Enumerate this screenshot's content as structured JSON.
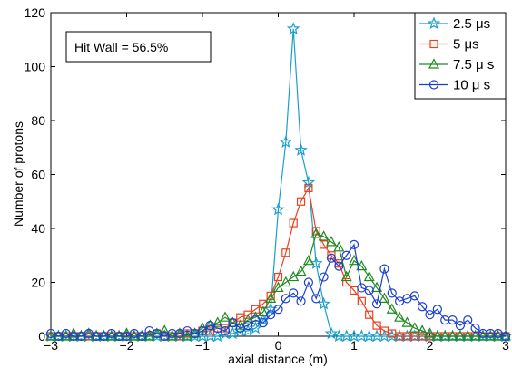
{
  "chart_data": {
    "type": "line",
    "xlabel": "axial distance (m)",
    "ylabel": "Number of protons",
    "xlim": [
      -3,
      3
    ],
    "ylim": [
      0,
      120
    ],
    "xticks": [
      -3,
      -2,
      -1,
      0,
      1,
      2,
      3
    ],
    "yticks": [
      0,
      20,
      40,
      60,
      80,
      100,
      120
    ],
    "grid": false,
    "legend_position": "top-right",
    "annotation": "Hit Wall = 56.5%",
    "series": [
      {
        "name": "2.5 μs",
        "color": "#1a9fcc",
        "marker": "star",
        "x": [
          -3.0,
          -2.9,
          -2.8,
          -2.7,
          -2.6,
          -2.5,
          -2.4,
          -2.3,
          -2.2,
          -2.1,
          -2.0,
          -1.9,
          -1.8,
          -1.7,
          -1.6,
          -1.5,
          -1.4,
          -1.3,
          -1.2,
          -1.1,
          -1.0,
          -0.9,
          -0.8,
          -0.7,
          -0.6,
          -0.5,
          -0.4,
          -0.3,
          -0.2,
          -0.1,
          0.0,
          0.1,
          0.2,
          0.3,
          0.4,
          0.5,
          0.6,
          0.7,
          0.8,
          0.9,
          1.0,
          1.1,
          1.2,
          1.3,
          1.4,
          1.5,
          1.6,
          1.7,
          1.8,
          1.9,
          2.0,
          2.1,
          2.2,
          2.3,
          2.4,
          2.5,
          2.6,
          2.7,
          2.8,
          2.9,
          3.0
        ],
        "y": [
          0,
          0,
          0,
          0,
          0,
          0,
          0,
          0,
          0,
          0,
          0,
          0,
          0,
          0,
          0,
          0,
          0,
          0,
          0,
          0,
          0,
          0,
          0,
          1,
          1,
          2,
          2,
          3,
          6,
          10,
          47,
          72,
          114,
          69,
          57,
          27,
          12,
          1,
          0,
          0,
          0,
          0,
          0,
          0,
          0,
          0,
          0,
          0,
          0,
          0,
          0,
          0,
          0,
          0,
          0,
          0,
          0,
          0,
          0,
          0,
          0
        ]
      },
      {
        "name": "5 μs",
        "color": "#e84020",
        "marker": "square",
        "x": [
          -3.0,
          -2.9,
          -2.8,
          -2.7,
          -2.6,
          -2.5,
          -2.4,
          -2.3,
          -2.2,
          -2.1,
          -2.0,
          -1.9,
          -1.8,
          -1.7,
          -1.6,
          -1.5,
          -1.4,
          -1.3,
          -1.2,
          -1.1,
          -1.0,
          -0.9,
          -0.8,
          -0.7,
          -0.6,
          -0.5,
          -0.4,
          -0.3,
          -0.2,
          -0.1,
          0.0,
          0.1,
          0.2,
          0.3,
          0.4,
          0.5,
          0.6,
          0.7,
          0.8,
          0.9,
          1.0,
          1.1,
          1.2,
          1.3,
          1.4,
          1.5,
          1.6,
          1.7,
          1.8,
          1.9,
          2.0,
          2.1,
          2.2,
          2.3,
          2.4,
          2.5,
          2.6,
          2.7,
          2.8,
          2.9,
          3.0
        ],
        "y": [
          0,
          0,
          0,
          0,
          0,
          0,
          0,
          0,
          0,
          0,
          0,
          0,
          0,
          0,
          1,
          0,
          0,
          0,
          1,
          1,
          2,
          2,
          3,
          3,
          5,
          7,
          8,
          10,
          12,
          15,
          22,
          31,
          42,
          50,
          55,
          39,
          34,
          30,
          27,
          20,
          17,
          13,
          8,
          4,
          2,
          1,
          0,
          0,
          0,
          0,
          0,
          0,
          0,
          0,
          0,
          0,
          0,
          0,
          0,
          0,
          0
        ]
      },
      {
        "name": "7.5 μ s",
        "color": "#1f8a1f",
        "marker": "triangle",
        "x": [
          -3.0,
          -2.9,
          -2.8,
          -2.7,
          -2.6,
          -2.5,
          -2.4,
          -2.3,
          -2.2,
          -2.1,
          -2.0,
          -1.9,
          -1.8,
          -1.7,
          -1.6,
          -1.5,
          -1.4,
          -1.3,
          -1.2,
          -1.1,
          -1.0,
          -0.9,
          -0.8,
          -0.7,
          -0.6,
          -0.5,
          -0.4,
          -0.3,
          -0.2,
          -0.1,
          0.0,
          0.1,
          0.2,
          0.3,
          0.4,
          0.5,
          0.6,
          0.7,
          0.8,
          0.9,
          1.0,
          1.1,
          1.2,
          1.3,
          1.4,
          1.5,
          1.6,
          1.7,
          1.8,
          1.9,
          2.0,
          2.1,
          2.2,
          2.3,
          2.4,
          2.5,
          2.6,
          2.7,
          2.8,
          2.9,
          3.0
        ],
        "y": [
          0,
          0,
          0,
          1,
          0,
          1,
          0,
          0,
          0,
          0,
          1,
          0,
          0,
          0,
          1,
          2,
          0,
          1,
          0,
          1,
          3,
          4,
          5,
          7,
          5,
          4,
          6,
          7,
          9,
          14,
          18,
          20,
          22,
          24,
          28,
          38,
          37,
          35,
          33,
          22,
          28,
          26,
          22,
          18,
          14,
          10,
          7,
          5,
          3,
          2,
          1,
          0,
          0,
          0,
          0,
          0,
          0,
          0,
          0,
          0,
          0
        ]
      },
      {
        "name": "10 μ s",
        "color": "#1c3fd0",
        "marker": "circle",
        "x": [
          -3.0,
          -2.9,
          -2.8,
          -2.7,
          -2.6,
          -2.5,
          -2.4,
          -2.3,
          -2.2,
          -2.1,
          -2.0,
          -1.9,
          -1.8,
          -1.7,
          -1.6,
          -1.5,
          -1.4,
          -1.3,
          -1.2,
          -1.1,
          -1.0,
          -0.9,
          -0.8,
          -0.7,
          -0.6,
          -0.5,
          -0.4,
          -0.3,
          -0.2,
          -0.1,
          0.0,
          0.1,
          0.2,
          0.3,
          0.4,
          0.5,
          0.6,
          0.7,
          0.8,
          0.9,
          1.0,
          1.1,
          1.2,
          1.3,
          1.4,
          1.5,
          1.6,
          1.7,
          1.8,
          1.9,
          2.0,
          2.1,
          2.2,
          2.3,
          2.4,
          2.5,
          2.6,
          2.7,
          2.8,
          2.9,
          3.0
        ],
        "y": [
          1,
          0,
          1,
          0,
          0,
          1,
          0,
          0,
          1,
          0,
          0,
          1,
          0,
          2,
          1,
          0,
          1,
          1,
          2,
          1,
          2,
          4,
          3,
          2,
          5,
          3,
          4,
          6,
          5,
          8,
          10,
          14,
          16,
          13,
          20,
          14,
          22,
          29,
          26,
          30,
          34,
          18,
          17,
          12,
          25,
          16,
          13,
          14,
          15,
          11,
          8,
          10,
          6,
          6,
          4,
          6,
          3,
          1,
          1,
          1,
          0
        ]
      }
    ]
  }
}
